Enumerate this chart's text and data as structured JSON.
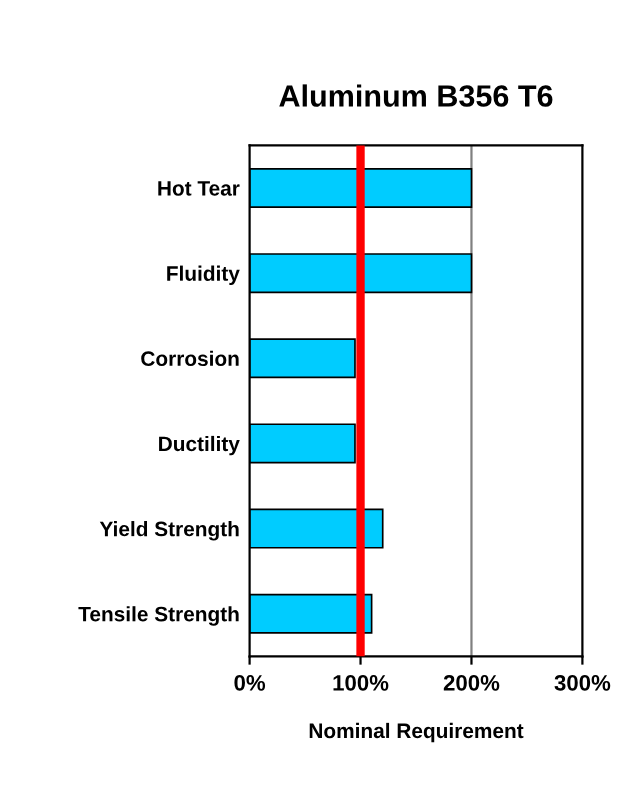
{
  "chart_data": {
    "type": "bar",
    "orientation": "horizontal",
    "title": "Aluminum B356 T6",
    "xlabel": "Nominal Requirement",
    "categories": [
      "Hot Tear",
      "Fluidity",
      "Corrosion",
      "Ductility",
      "Yield Strength",
      "Tensile Strength"
    ],
    "values": [
      200,
      200,
      95,
      95,
      120,
      110
    ],
    "color": "#00ccff",
    "xlim": [
      0,
      300
    ],
    "xticks": [
      {
        "value": 0,
        "label": "0%"
      },
      {
        "value": 100,
        "label": "100%"
      },
      {
        "value": 200,
        "label": "200%"
      },
      {
        "value": 300,
        "label": "300%"
      }
    ],
    "ref_lines": [
      {
        "axis": "x",
        "value": 200,
        "color": "#808080"
      },
      {
        "axis": "x",
        "value": 100,
        "color": "#ff0000"
      }
    ]
  }
}
